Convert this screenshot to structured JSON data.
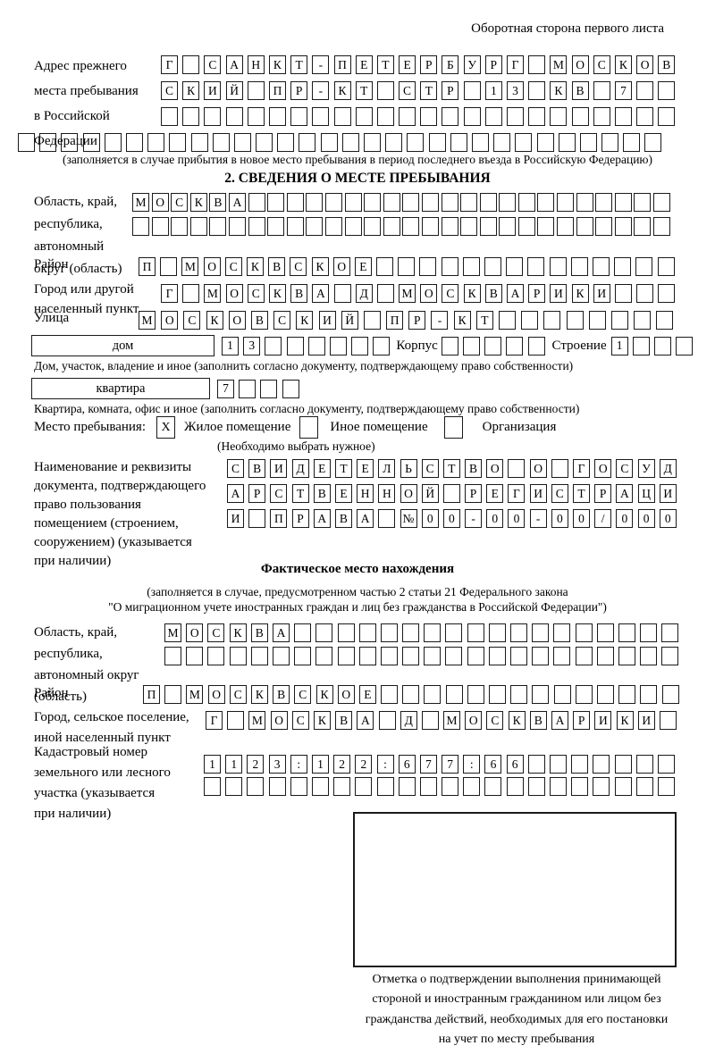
{
  "colors": {
    "ink": "#000000"
  },
  "page": {
    "header_note": "Оборотная сторона первого листа"
  },
  "prev_address": {
    "label_lines": [
      "Адрес прежнего",
      "места пребывания",
      "в Российской",
      "Федерации"
    ],
    "rows": [
      {
        "n": 24,
        "text": "Г САНКТ-ПЕТЕРБУРГ МОСКОВ"
      },
      {
        "n": 24,
        "text": "СКИЙ ПР-КТ СТР 13 КВ 7"
      },
      {
        "n": 24,
        "text": ""
      },
      {
        "n": 30,
        "text": ""
      }
    ],
    "note": "(заполняется в случае прибытия в новое место пребывания в период последнего въезда в Российскую Федерацию)"
  },
  "section2": {
    "title": "2. СВЕДЕНИЯ О МЕСТЕ ПРЕБЫВАНИЯ",
    "region": {
      "label_lines": [
        "Область, край,",
        "республика,",
        "автономный",
        "округ (область)"
      ],
      "rows": [
        {
          "n": 28,
          "text": "МОСКВА"
        },
        {
          "n": 28,
          "text": ""
        }
      ]
    },
    "district": {
      "label": "Район",
      "row": {
        "n": 25,
        "text": "П МОСКВСКОЕ"
      }
    },
    "city": {
      "label_lines": [
        "Город или другой",
        "населенный пункт"
      ],
      "row": {
        "n": 24,
        "text": "Г МОСКВА Д МОСКВАРИКИ"
      }
    },
    "street": {
      "label": "Улица",
      "row": {
        "n": 24,
        "text": "МОСКОВСКИЙ ПР-КТ"
      }
    },
    "house": {
      "label": "дом",
      "cells": {
        "n": 8,
        "text": "13"
      },
      "korpus_label": "Корпус",
      "korpus": {
        "n": 5,
        "text": ""
      },
      "stroenie_label": "Строение",
      "stroenie": {
        "n": 4,
        "text": "1"
      }
    },
    "house_note": "Дом, участок, владение и иное (заполнить согласно документу, подтверждающему право собственности)",
    "apartment": {
      "label": "квартира",
      "cells": {
        "n": 4,
        "text": "7"
      }
    },
    "apartment_note": "Квартира, комната, офис и иное (заполнить согласно документу, подтверждающему право собственности)",
    "stay_type": {
      "label": "Место пребывания:",
      "checked_value": "X",
      "options": [
        "Жилое помещение",
        "Иное помещение",
        "Организация"
      ],
      "note": "(Необходимо выбрать нужное)"
    },
    "doc": {
      "label_lines": [
        "Наименование и реквизиты",
        "документа, подтверждающего",
        "право пользования",
        "помещением (строением,",
        "сооружением) (указывается",
        "при наличии)"
      ],
      "rows": [
        {
          "n": 21,
          "text": "СВИДЕТЕЛЬСТВО О ГОСУД"
        },
        {
          "n": 21,
          "text": "АРСТВЕННОЙ РЕГИСТРАЦИ"
        },
        {
          "n": 21,
          "text": "И ПРАВА №00-00-00/000"
        }
      ]
    }
  },
  "actual_location": {
    "title": "Фактическое место нахождения",
    "note_lines": [
      "(заполняется в случае, предусмотренном частью 2 статьи 21 Федерального закона",
      "\"О миграционном учете иностранных граждан и лиц без гражданства в Российской Федерации\")"
    ],
    "region": {
      "label_lines": [
        "Область, край,",
        "республика,",
        "автономный округ",
        "(область)"
      ],
      "rows": [
        {
          "n": 24,
          "text": "МОСКВА"
        },
        {
          "n": 24,
          "text": ""
        }
      ]
    },
    "district": {
      "label": "Район",
      "row": {
        "n": 25,
        "text": "П МОСКВСКОЕ"
      }
    },
    "city": {
      "label_lines": [
        "Город, сельское поселение,",
        "иной населенный пункт"
      ],
      "row": {
        "n": 22,
        "text": "Г МОСКВА Д МОСКВАРИКИ"
      }
    },
    "cadastral": {
      "label_lines": [
        "Кадастровый номер",
        "земельного или лесного",
        "участка (указывается",
        "при наличии)"
      ],
      "rows": [
        {
          "n": 22,
          "text": "1123:122:677:66"
        },
        {
          "n": 22,
          "text": ""
        }
      ]
    }
  },
  "confirmation": {
    "note_lines": [
      "Отметка о подтверждении выполнения принимающей",
      "стороной и иностранным гражданином или лицом без",
      "гражданства действий, необходимых для его постановки",
      "на учет по месту пребывания"
    ]
  }
}
